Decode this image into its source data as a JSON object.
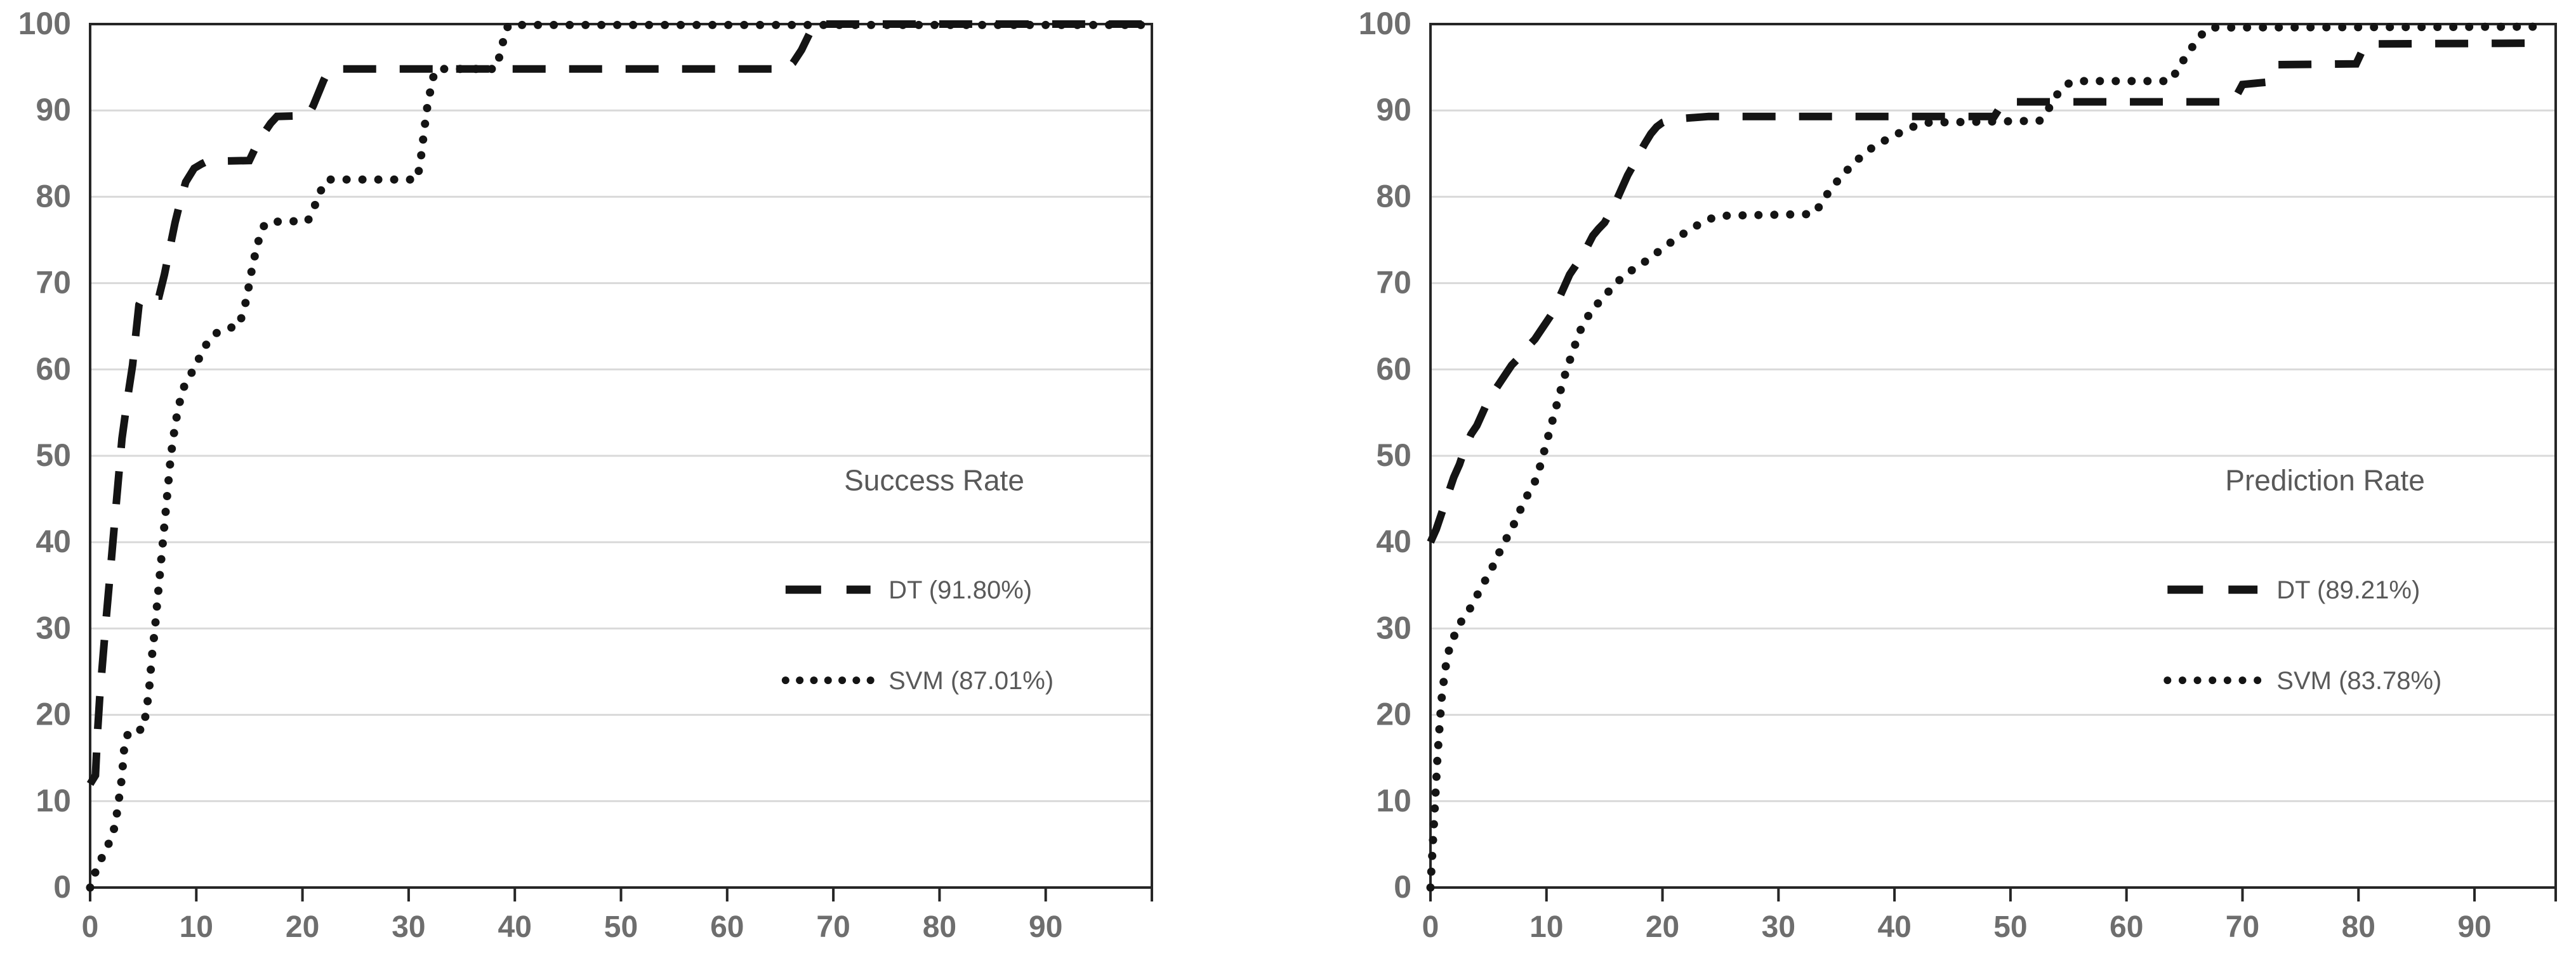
{
  "page": {
    "background": "#ffffff"
  },
  "colors": {
    "series_stroke": "#141414",
    "gridline": "#d9d9d9",
    "plot_border": "#262626",
    "axis_label_text": "#6e6e6e",
    "legend_text": "#595959"
  },
  "chart_data": [
    {
      "type": "line",
      "title": "",
      "legend_title": "Success Rate",
      "legend_position": "inside-right-center",
      "grid": "horizontal",
      "xlabel": "",
      "ylabel": "",
      "xlim": [
        0,
        100
      ],
      "ylim": [
        0,
        100
      ],
      "x_tick_labels": [
        "0",
        "10",
        "20",
        "30",
        "40",
        "50",
        "60",
        "70",
        "80",
        "90"
      ],
      "x_tick_values": [
        0,
        10,
        20,
        30,
        40,
        50,
        60,
        70,
        80,
        90
      ],
      "y_tick_labels": [
        "0",
        "10",
        "20",
        "30",
        "40",
        "50",
        "60",
        "70",
        "80",
        "90",
        "100"
      ],
      "y_tick_values": [
        0,
        10,
        20,
        30,
        40,
        50,
        60,
        70,
        80,
        90,
        100
      ],
      "series": [
        {
          "name": "DT (91.80%)",
          "style": "dashed",
          "points": [
            [
              0,
              12
            ],
            [
              0.5,
              13
            ],
            [
              0.7,
              18
            ],
            [
              0.9,
              22
            ],
            [
              1.1,
              25
            ],
            [
              1.5,
              31
            ],
            [
              2,
              38
            ],
            [
              2.5,
              45
            ],
            [
              3,
              52
            ],
            [
              3.5,
              56.5
            ],
            [
              4,
              60.5
            ],
            [
              4.3,
              64
            ],
            [
              4.6,
              67.5
            ],
            [
              5,
              68.5
            ],
            [
              6.5,
              68.5
            ],
            [
              7,
              71
            ],
            [
              7.5,
              74
            ],
            [
              8,
              77
            ],
            [
              8.5,
              79.5
            ],
            [
              9,
              81.7
            ],
            [
              9.8,
              83.3
            ],
            [
              10.5,
              83.8
            ],
            [
              11,
              84.1
            ],
            [
              15,
              84.2
            ],
            [
              15.5,
              85.5
            ],
            [
              16,
              86.6
            ],
            [
              16.5,
              87.6
            ],
            [
              17,
              88.5
            ],
            [
              17.6,
              89.3
            ],
            [
              20.5,
              89.4
            ],
            [
              21,
              90.5
            ],
            [
              21.5,
              92
            ],
            [
              22,
              93.5
            ],
            [
              22.5,
              94.7
            ],
            [
              23,
              94.8
            ],
            [
              65.5,
              94.8
            ],
            [
              66.2,
              95.5
            ],
            [
              67,
              97
            ],
            [
              67.6,
              98.5
            ],
            [
              68.2,
              100
            ],
            [
              99.5,
              100
            ]
          ]
        },
        {
          "name": "SVM (87.01%)",
          "style": "dotted",
          "points": [
            [
              0,
              0
            ],
            [
              0.5,
              1.8
            ],
            [
              1,
              3.2
            ],
            [
              1.6,
              4.7
            ],
            [
              2.1,
              6
            ],
            [
              2.4,
              7.6
            ],
            [
              2.6,
              9.2
            ],
            [
              2.8,
              11
            ],
            [
              3,
              12.8
            ],
            [
              3.1,
              14.5
            ],
            [
              3.2,
              16
            ],
            [
              3.4,
              17.3
            ],
            [
              3.7,
              18.2
            ],
            [
              5,
              18.3
            ],
            [
              5.2,
              19.8
            ],
            [
              5.4,
              21.4
            ],
            [
              5.6,
              23.5
            ],
            [
              5.8,
              26.5
            ],
            [
              6.1,
              30
            ],
            [
              6.4,
              34
            ],
            [
              6.7,
              38
            ],
            [
              7,
              42
            ],
            [
              7.3,
              46
            ],
            [
              7.6,
              50
            ],
            [
              8,
              53.5
            ],
            [
              8.3,
              55.5
            ],
            [
              8.7,
              57.5
            ],
            [
              9,
              58.5
            ],
            [
              9.5,
              59.5
            ],
            [
              10,
              60.5
            ],
            [
              10.5,
              62
            ],
            [
              11,
              63
            ],
            [
              11.5,
              63.8
            ],
            [
              12,
              64.3
            ],
            [
              13,
              64.8
            ],
            [
              14,
              65
            ],
            [
              14.3,
              66.2
            ],
            [
              14.7,
              68
            ],
            [
              15,
              70
            ],
            [
              15.3,
              72
            ],
            [
              15.7,
              74.2
            ],
            [
              16,
              75.5
            ],
            [
              16.3,
              76.5
            ],
            [
              16.7,
              77.1
            ],
            [
              20.5,
              77.2
            ],
            [
              21,
              78.5
            ],
            [
              21.5,
              80
            ],
            [
              22,
              81.5
            ],
            [
              22.4,
              82
            ],
            [
              30.8,
              82
            ],
            [
              31.1,
              84
            ],
            [
              31.3,
              86
            ],
            [
              31.5,
              88
            ],
            [
              31.7,
              90
            ],
            [
              32,
              92
            ],
            [
              32.3,
              93.8
            ],
            [
              32.7,
              94.8
            ],
            [
              38.2,
              94.8
            ],
            [
              38.5,
              96
            ],
            [
              38.8,
              97.5
            ],
            [
              39.1,
              99
            ],
            [
              39.4,
              99.9
            ],
            [
              99.5,
              99.9
            ]
          ]
        }
      ]
    },
    {
      "type": "line",
      "title": "",
      "legend_title": "Prediction Rate",
      "legend_position": "inside-right-center",
      "grid": "horizontal",
      "xlabel": "",
      "ylabel": "",
      "xlim": [
        0,
        97
      ],
      "ylim": [
        0,
        100
      ],
      "x_tick_labels": [
        "0",
        "10",
        "20",
        "30",
        "40",
        "50",
        "60",
        "70",
        "80",
        "90"
      ],
      "x_tick_values": [
        0,
        10,
        20,
        30,
        40,
        50,
        60,
        70,
        80,
        90
      ],
      "y_tick_labels": [
        "0",
        "10",
        "20",
        "30",
        "40",
        "50",
        "60",
        "70",
        "80",
        "90",
        "100"
      ],
      "y_tick_values": [
        0,
        10,
        20,
        30,
        40,
        50,
        60,
        70,
        80,
        90,
        100
      ],
      "series": [
        {
          "name": "DT (89.21%)",
          "style": "dashed",
          "points": [
            [
              0,
              40
            ],
            [
              0.5,
              41.5
            ],
            [
              1,
              43.5
            ],
            [
              1.5,
              45.5
            ],
            [
              2,
              47.5
            ],
            [
              2.5,
              49
            ],
            [
              3,
              51
            ],
            [
              3.5,
              52.5
            ],
            [
              4,
              53.5
            ],
            [
              4.5,
              55
            ],
            [
              5,
              56.5
            ],
            [
              5.5,
              57.5
            ],
            [
              6,
              58.5
            ],
            [
              6.5,
              59.5
            ],
            [
              7,
              60.5
            ],
            [
              7.5,
              61.2
            ],
            [
              8,
              62
            ],
            [
              8.5,
              62.8
            ],
            [
              9,
              63.5
            ],
            [
              9.5,
              64.5
            ],
            [
              10,
              65.5
            ],
            [
              10.5,
              66.5
            ],
            [
              11,
              68
            ],
            [
              11.5,
              69.5
            ],
            [
              12,
              71
            ],
            [
              12.5,
              72
            ],
            [
              13,
              73
            ],
            [
              13.5,
              74.2
            ],
            [
              14,
              75.5
            ],
            [
              14.5,
              76.3
            ],
            [
              15,
              77
            ],
            [
              15.5,
              78.2
            ],
            [
              16,
              79.5
            ],
            [
              16.5,
              81
            ],
            [
              17,
              82.5
            ],
            [
              17.5,
              83.7
            ],
            [
              18,
              85
            ],
            [
              18.5,
              86.2
            ],
            [
              19,
              87.3
            ],
            [
              19.5,
              88.1
            ],
            [
              20,
              88.6
            ],
            [
              21,
              89
            ],
            [
              24,
              89.3
            ],
            [
              48.6,
              89.3
            ],
            [
              49.4,
              91
            ],
            [
              69.2,
              91
            ],
            [
              70,
              93
            ],
            [
              72.3,
              93.3
            ],
            [
              73.1,
              95.3
            ],
            [
              79.8,
              95.4
            ],
            [
              80.6,
              97.7
            ],
            [
              96.3,
              97.8
            ]
          ]
        },
        {
          "name": "SVM (83.78%)",
          "style": "dotted",
          "points": [
            [
              0,
              0
            ],
            [
              0.2,
              5
            ],
            [
              0.4,
              10
            ],
            [
              0.6,
              15
            ],
            [
              0.8,
              19
            ],
            [
              1,
              22.5
            ],
            [
              1.3,
              25.5
            ],
            [
              1.6,
              27.5
            ],
            [
              2,
              29
            ],
            [
              2.5,
              30.5
            ],
            [
              3,
              31.5
            ],
            [
              3.5,
              32.5
            ],
            [
              4,
              33.8
            ],
            [
              4.5,
              35
            ],
            [
              5,
              36.3
            ],
            [
              5.5,
              37.5
            ],
            [
              6,
              39
            ],
            [
              6.5,
              40.3
            ],
            [
              7,
              41.5
            ],
            [
              7.5,
              43
            ],
            [
              8,
              44.5
            ],
            [
              8.5,
              45.8
            ],
            [
              9,
              47
            ],
            [
              9.5,
              49
            ],
            [
              10,
              51.5
            ],
            [
              10.5,
              54
            ],
            [
              11,
              56.5
            ],
            [
              11.5,
              59
            ],
            [
              12,
              61
            ],
            [
              12.5,
              63
            ],
            [
              13,
              64.8
            ],
            [
              13.5,
              66
            ],
            [
              14,
              67
            ],
            [
              15,
              68.5
            ],
            [
              16,
              70
            ],
            [
              17,
              71.2
            ],
            [
              18,
              72
            ],
            [
              19,
              73
            ],
            [
              20,
              74
            ],
            [
              21,
              75
            ],
            [
              22,
              75.9
            ],
            [
              23,
              76.7
            ],
            [
              24,
              77.4
            ],
            [
              25,
              77.8
            ],
            [
              33,
              78
            ],
            [
              33.6,
              79
            ],
            [
              34.2,
              80.3
            ],
            [
              35,
              81.7
            ],
            [
              36,
              83.2
            ],
            [
              37,
              84.5
            ],
            [
              38,
              85.6
            ],
            [
              39,
              86.4
            ],
            [
              40,
              87.1
            ],
            [
              41,
              87.8
            ],
            [
              42,
              88.3
            ],
            [
              43,
              88.6
            ],
            [
              52.5,
              88.8
            ],
            [
              53.2,
              90
            ],
            [
              54,
              91.8
            ],
            [
              54.8,
              93
            ],
            [
              55.6,
              93.4
            ],
            [
              63.8,
              93.4
            ],
            [
              64.3,
              94.5
            ],
            [
              64.9,
              95.8
            ],
            [
              65.5,
              97
            ],
            [
              66.1,
              98.2
            ],
            [
              66.7,
              99.1
            ],
            [
              67.3,
              99.6
            ],
            [
              96.3,
              99.7
            ]
          ]
        }
      ]
    }
  ]
}
